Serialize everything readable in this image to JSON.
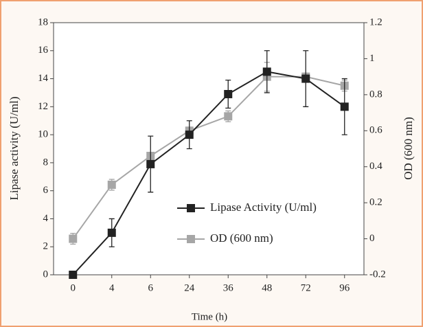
{
  "chart_data": {
    "type": "line",
    "x_label": "Time (h)",
    "y_label": "Lipase activity (U/ml)",
    "y2_label": "OD (600 nm)",
    "categories": [
      "0",
      "4",
      "6",
      "24",
      "36",
      "48",
      "72",
      "96"
    ],
    "series": [
      {
        "name": "Lipase Activity (U/ml)",
        "color": "#222222",
        "values": [
          0,
          3,
          7.9,
          10,
          12.9,
          14.5,
          14,
          12
        ],
        "errors": [
          0,
          1,
          2,
          1,
          1,
          1.5,
          2,
          2
        ]
      },
      {
        "name": "OD (600 nm)",
        "color": "#a6a6a6",
        "axis": "y2",
        "values": [
          0,
          0.3,
          0.46,
          0.6,
          0.68,
          0.9,
          0.9,
          0.85
        ],
        "errors": [
          0.03,
          0.03,
          0.02,
          0.02,
          0.03,
          0.08,
          0.02,
          0.03
        ]
      }
    ],
    "ylim": [
      0,
      18
    ],
    "yticks": [
      0,
      2,
      4,
      6,
      8,
      10,
      12,
      14,
      16,
      18
    ],
    "y2lim": [
      -0.2,
      1.2
    ],
    "y2ticks": [
      -0.2,
      0,
      0.2,
      0.4,
      0.6,
      0.8,
      1,
      1.2
    ]
  }
}
